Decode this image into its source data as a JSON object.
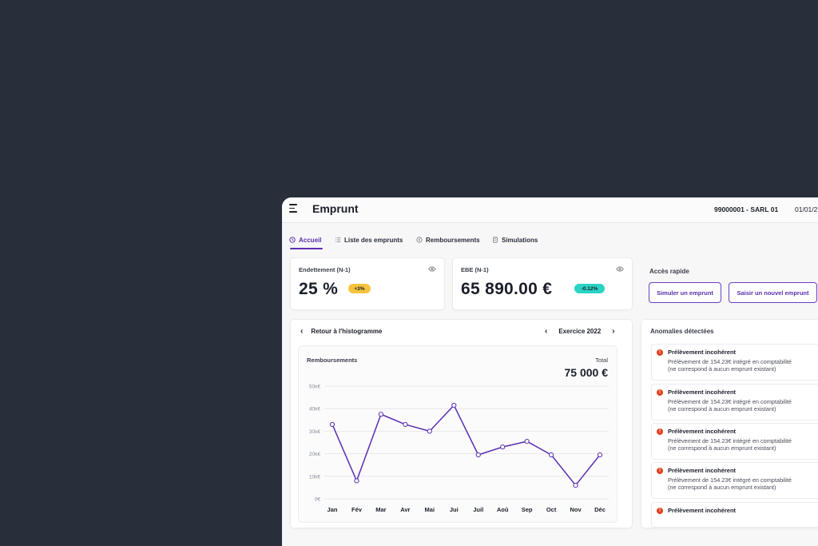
{
  "header": {
    "title": "Emprunt",
    "company": "99000001 - SARL 01",
    "date": "01/01/2"
  },
  "tabs": [
    {
      "label": "Accueil",
      "icon": "clock-icon",
      "active": true
    },
    {
      "label": "Liste des emprunts",
      "icon": "list-icon",
      "active": false
    },
    {
      "label": "Remboursements",
      "icon": "refund-icon",
      "active": false
    },
    {
      "label": "Simulations",
      "icon": "document-icon",
      "active": false
    }
  ],
  "kpis": [
    {
      "label": "Endettement (N-1)",
      "value": "25 %",
      "badge": "+3%",
      "badge_color": "#f6c33c"
    },
    {
      "label": "EBE (N-1)",
      "value": "65 890.00 €",
      "badge": "-0.12%",
      "badge_color": "#2ad3c4"
    }
  ],
  "quick_access": {
    "title": "Accès rapide",
    "buttons": [
      "Simuler un emprunt",
      "Saisir un nouvel emprunt"
    ]
  },
  "chart_panel": {
    "back_label": "Retour à l'histogramme",
    "year_label": "Exercice 2022"
  },
  "chart_data": {
    "type": "line",
    "title": "Remboursements",
    "total_label": "Total",
    "total_value": "75 000 €",
    "categories": [
      "Jan",
      "Fév",
      "Mar",
      "Avr",
      "Mai",
      "Jui",
      "Juil",
      "Aoû",
      "Sep",
      "Oct",
      "Nov",
      "Déc"
    ],
    "series": [
      {
        "values": [
          33000,
          8000,
          37500,
          33000,
          30000,
          41500,
          19500,
          23000,
          25500,
          19500,
          6000,
          19500
        ]
      }
    ],
    "yticks": [
      "0€",
      "10k€",
      "20k€",
      "30k€",
      "40k€",
      "50k€"
    ],
    "ylim": [
      0,
      50000
    ],
    "grid": true,
    "line_color": "#5b2fb0"
  },
  "anomalies": {
    "title": "Anomalies détectées",
    "items": [
      {
        "title": "Prélèvement incohérent",
        "line1": "Prélèvement de 154.23€ intégré en comptabilité",
        "line2": "(ne correspond à aucun emprunt existant)"
      },
      {
        "title": "Prélèvement incohérent",
        "line1": "Prélèvement de 154.23€ intégré en comptabilité",
        "line2": "(ne correspond à aucun emprunt existant)"
      },
      {
        "title": "Prélèvement incohérent",
        "line1": "Prélèvement de 154.23€ intégré en comptabilité",
        "line2": "(ne correspond à aucun emprunt existant)"
      },
      {
        "title": "Prélèvement incohérent",
        "line1": "Prélèvement de 154.23€ intégré en comptabilité",
        "line2": "(ne correspond à aucun emprunt existant)"
      },
      {
        "title": "Prélèvement incohérent"
      }
    ]
  }
}
